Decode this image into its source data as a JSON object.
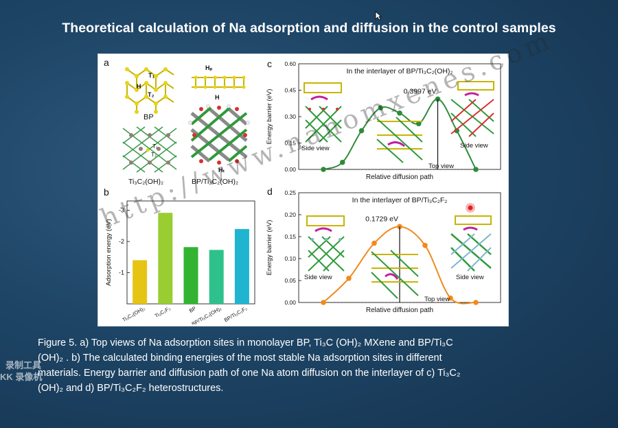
{
  "slide": {
    "title": "Theoretical calculation of Na adsorption and diffusion in the control samples"
  },
  "panel_a": {
    "letter": "a",
    "labels": {
      "t1": "T₁",
      "h_left": "H",
      "t2": "T₂",
      "bp": "BP",
      "hp": "Hₚ",
      "h_right": "H",
      "ht": "Hₜ",
      "ti_mxene": "Ti₃C₂(OH)₂",
      "heterostructure": "BP/Ti₃C₂(OH)₂",
      "ti_t1": "T₁",
      "ti_t2": "T₂"
    }
  },
  "chart_data": [
    {
      "panel": "b",
      "type": "bar",
      "ylabel": "Adsorption energy (eV)",
      "yticks": [
        "-3",
        "-2",
        "-1"
      ],
      "ylim": [
        0,
        -3.3
      ],
      "categories": [
        "Ti₃C₂(OH)₂",
        "Ti₃C₂F₂",
        "BP",
        "BP/Ti₃C₂(OH)₂",
        "BP/Ti₃C₂F₂"
      ],
      "values": [
        -1.4,
        -2.92,
        -1.82,
        -1.73,
        -2.4
      ],
      "colors": [
        "#e6c414",
        "#9acd32",
        "#32b432",
        "#2fc18c",
        "#1fb5d0"
      ]
    },
    {
      "panel": "c",
      "type": "line",
      "title": "In the interlayer of BP/Ti₃C₂(OH)₂",
      "xlabel": "Relative diffusion path",
      "ylabel": "Energy barrier (eV)",
      "yticks": [
        "0.00",
        "0.15",
        "0.30",
        "0.45",
        "0.60"
      ],
      "ylim": [
        0,
        0.6
      ],
      "x": [
        0,
        1,
        2,
        3,
        4,
        5,
        6,
        7,
        8
      ],
      "y": [
        0.0,
        0.04,
        0.22,
        0.35,
        0.32,
        0.26,
        0.3997,
        0.22,
        0.0
      ],
      "annotation": "0.3997 eV",
      "color": "#2e8b3a"
    },
    {
      "panel": "d",
      "type": "line",
      "title": "In the interlayer of BP/Ti₃C₂F₂",
      "xlabel": "Relative diffusion path",
      "ylabel": "Energy barrier (eV)",
      "yticks": [
        "0.00",
        "0.05",
        "0.10",
        "0.15",
        "0.20",
        "0.25"
      ],
      "ylim": [
        0,
        0.25
      ],
      "x": [
        0,
        1,
        2,
        3,
        4,
        5,
        6
      ],
      "y": [
        0.0,
        0.055,
        0.135,
        0.1729,
        0.13,
        0.01,
        0.0
      ],
      "annotation": "0.1729 eV",
      "color": "#f08a1c"
    }
  ],
  "panel_c": {
    "letter": "c",
    "side_view_left": "Side view",
    "side_view_right": "Side view",
    "top_view": "Top view"
  },
  "panel_d": {
    "letter": "d",
    "side_view_left": "Side view",
    "side_view_right": "Side view",
    "top_view": "Top view"
  },
  "panel_b": {
    "letter": "b"
  },
  "caption": {
    "line1": "Figure 5. a) Top views of Na adsorption sites in monolayer BP, Ti₃C (OH)₂ MXene and BP/Ti₃C",
    "line2": "(OH)₂ . b) The calculated binding energies of the most stable Na adsorption sites in different",
    "line3": "materials. Energy barrier and diffusion path of one Na atom diffusion on the interlayer of c) Ti₃C₂",
    "line4": "(OH)₂ and d) BP/Ti₃C₂F₂ heterostructures."
  },
  "watermark": "http://www.nanomxenes.com",
  "recorder": {
    "line1": "录制工具",
    "line2": "KK 录像机"
  }
}
